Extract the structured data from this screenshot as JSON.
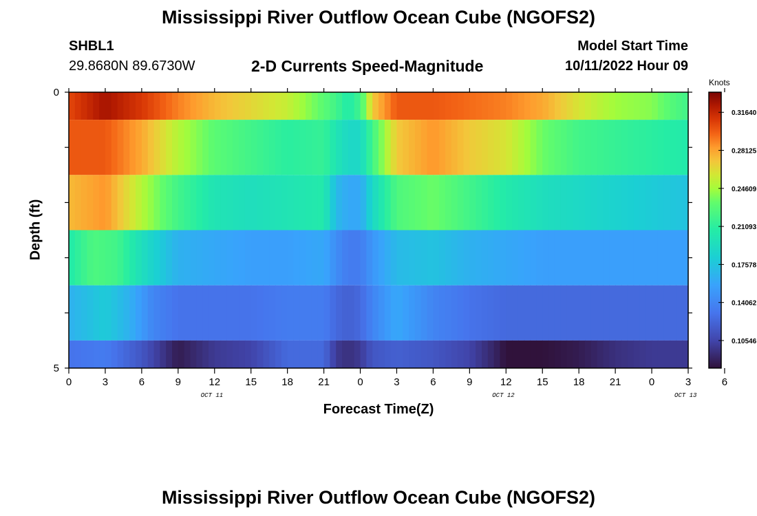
{
  "header": {
    "title": "Mississippi River Outflow Ocean Cube (NGOFS2)",
    "station_id": "SHBL1",
    "coordinates": "29.8680N  89.6730W",
    "subtitle": "2-D Currents Speed-Magnitude",
    "model_start_label": "Model Start Time",
    "model_start_value": "10/11/2022 Hour 09"
  },
  "footer": {
    "title": "Mississippi River Outflow Ocean Cube (NGOFS2)"
  },
  "colorbar": {
    "unit": "Knots",
    "tick_labels": [
      "0.31640",
      "0.28125",
      "0.24609",
      "0.21093",
      "0.17578",
      "0.14062",
      "0.10546"
    ],
    "tick_values": [
      0.3164,
      0.28125,
      0.24609,
      0.21093,
      0.17578,
      0.14062,
      0.10546
    ],
    "range": [
      0.08,
      0.335
    ]
  },
  "chart_data": {
    "type": "heatmap",
    "xlabel": "Forecast Time(Z)",
    "ylabel": "Depth (ft)",
    "x_range": [
      0,
      51
    ],
    "y_range": [
      0,
      5
    ],
    "x_tick_labels": [
      "0",
      "3",
      "6",
      "9",
      "12",
      "15",
      "18",
      "21",
      "0",
      "3",
      "6",
      "9",
      "12",
      "15",
      "18",
      "21",
      "0",
      "3",
      "6"
    ],
    "y_tick_labels": [
      "0",
      "5"
    ],
    "date_labels": [
      {
        "text": "OCT 11",
        "hour": 12
      },
      {
        "text": "OCT 12",
        "hour": 36
      },
      {
        "text": "OCT 13",
        "hour": 51
      }
    ],
    "layers": [
      {
        "depth_range": [
          0,
          0.5
        ],
        "keyframes": [
          [
            0,
            0.305
          ],
          [
            3,
            0.325
          ],
          [
            6,
            0.31
          ],
          [
            9,
            0.29
          ],
          [
            12,
            0.275
          ],
          [
            15,
            0.265
          ],
          [
            18,
            0.255
          ],
          [
            21,
            0.23
          ],
          [
            22,
            0.22
          ],
          [
            23,
            0.205
          ],
          [
            24,
            0.22
          ],
          [
            25,
            0.27
          ],
          [
            27,
            0.3
          ],
          [
            30,
            0.3
          ],
          [
            33,
            0.295
          ],
          [
            36,
            0.29
          ],
          [
            39,
            0.28
          ],
          [
            42,
            0.26
          ],
          [
            45,
            0.245
          ],
          [
            48,
            0.24
          ],
          [
            50,
            0.225
          ],
          [
            51,
            0.22
          ]
        ]
      },
      {
        "depth_range": [
          0.5,
          1.5
        ],
        "keyframes": [
          [
            0,
            0.3
          ],
          [
            3,
            0.3
          ],
          [
            6,
            0.28
          ],
          [
            9,
            0.25
          ],
          [
            12,
            0.23
          ],
          [
            15,
            0.22
          ],
          [
            18,
            0.21
          ],
          [
            21,
            0.215
          ],
          [
            22,
            0.2
          ],
          [
            23,
            0.19
          ],
          [
            24,
            0.19
          ],
          [
            25,
            0.22
          ],
          [
            27,
            0.27
          ],
          [
            30,
            0.285
          ],
          [
            33,
            0.27
          ],
          [
            36,
            0.26
          ],
          [
            39,
            0.235
          ],
          [
            42,
            0.22
          ],
          [
            45,
            0.215
          ],
          [
            48,
            0.21
          ],
          [
            51,
            0.205
          ]
        ]
      },
      {
        "depth_range": [
          1.5,
          2.5
        ],
        "keyframes": [
          [
            0,
            0.275
          ],
          [
            3,
            0.285
          ],
          [
            6,
            0.25
          ],
          [
            9,
            0.22
          ],
          [
            12,
            0.2
          ],
          [
            15,
            0.195
          ],
          [
            18,
            0.2
          ],
          [
            21,
            0.205
          ],
          [
            22,
            0.17
          ],
          [
            23,
            0.16
          ],
          [
            24,
            0.16
          ],
          [
            25,
            0.19
          ],
          [
            27,
            0.225
          ],
          [
            30,
            0.235
          ],
          [
            33,
            0.22
          ],
          [
            36,
            0.205
          ],
          [
            39,
            0.195
          ],
          [
            42,
            0.19
          ],
          [
            45,
            0.185
          ],
          [
            48,
            0.18
          ],
          [
            51,
            0.175
          ]
        ]
      },
      {
        "depth_range": [
          2.5,
          3.5
        ],
        "keyframes": [
          [
            0,
            0.205
          ],
          [
            2,
            0.225
          ],
          [
            4,
            0.22
          ],
          [
            6,
            0.195
          ],
          [
            9,
            0.165
          ],
          [
            12,
            0.16
          ],
          [
            15,
            0.155
          ],
          [
            18,
            0.155
          ],
          [
            21,
            0.16
          ],
          [
            22,
            0.145
          ],
          [
            23,
            0.135
          ],
          [
            24,
            0.135
          ],
          [
            25,
            0.15
          ],
          [
            27,
            0.17
          ],
          [
            30,
            0.175
          ],
          [
            33,
            0.165
          ],
          [
            36,
            0.16
          ],
          [
            39,
            0.155
          ],
          [
            42,
            0.155
          ],
          [
            45,
            0.155
          ],
          [
            48,
            0.155
          ],
          [
            51,
            0.155
          ]
        ]
      },
      {
        "depth_range": [
          3.5,
          4.5
        ],
        "keyframes": [
          [
            0,
            0.165
          ],
          [
            3,
            0.18
          ],
          [
            5,
            0.165
          ],
          [
            7,
            0.14
          ],
          [
            9,
            0.13
          ],
          [
            12,
            0.13
          ],
          [
            15,
            0.13
          ],
          [
            18,
            0.135
          ],
          [
            21,
            0.135
          ],
          [
            22,
            0.125
          ],
          [
            23,
            0.12
          ],
          [
            24,
            0.125
          ],
          [
            25,
            0.14
          ],
          [
            27,
            0.16
          ],
          [
            30,
            0.14
          ],
          [
            33,
            0.13
          ],
          [
            36,
            0.125
          ],
          [
            39,
            0.125
          ],
          [
            42,
            0.125
          ],
          [
            45,
            0.125
          ],
          [
            48,
            0.125
          ],
          [
            51,
            0.125
          ]
        ]
      },
      {
        "depth_range": [
          4.5,
          5
        ],
        "keyframes": [
          [
            0,
            0.13
          ],
          [
            3,
            0.135
          ],
          [
            6,
            0.115
          ],
          [
            8,
            0.095
          ],
          [
            9,
            0.085
          ],
          [
            12,
            0.1
          ],
          [
            15,
            0.105
          ],
          [
            18,
            0.125
          ],
          [
            21,
            0.125
          ],
          [
            22,
            0.1
          ],
          [
            23,
            0.095
          ],
          [
            24,
            0.1
          ],
          [
            25,
            0.115
          ],
          [
            27,
            0.12
          ],
          [
            30,
            0.115
          ],
          [
            33,
            0.105
          ],
          [
            35,
            0.09
          ],
          [
            36,
            0.08
          ],
          [
            39,
            0.08
          ],
          [
            42,
            0.085
          ],
          [
            45,
            0.095
          ],
          [
            48,
            0.1
          ],
          [
            51,
            0.1
          ]
        ]
      }
    ]
  }
}
